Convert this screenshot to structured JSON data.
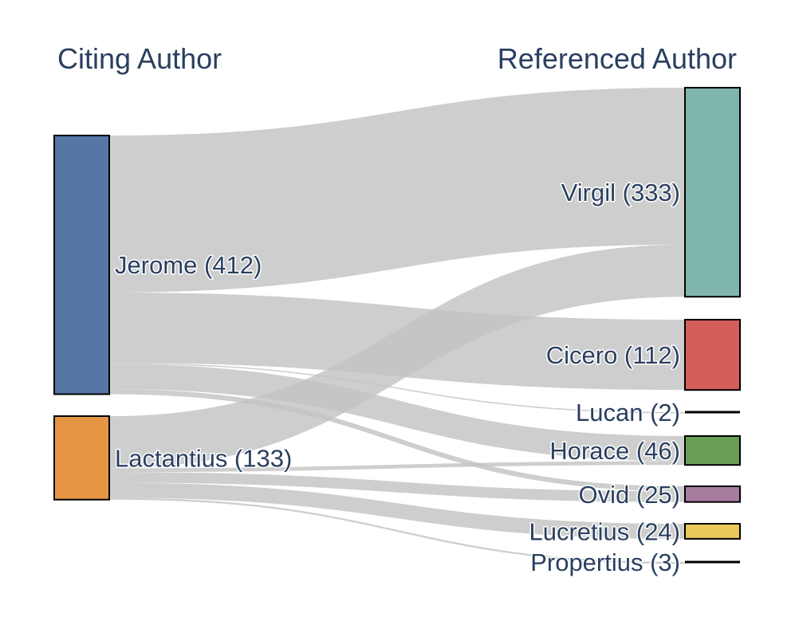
{
  "chart_data": {
    "type": "sankey",
    "headers": {
      "left": "Citing Author",
      "right": "Referenced Author"
    },
    "sources": [
      {
        "id": "jerome",
        "name": "Jerome",
        "total": 412,
        "label": "Jerome (412)",
        "color": "#5676a6"
      },
      {
        "id": "lactantius",
        "name": "Lactantius",
        "total": 133,
        "label": "Lactantius (133)",
        "color": "#e69545"
      }
    ],
    "targets": [
      {
        "id": "virgil",
        "name": "Virgil",
        "total": 333,
        "label": "Virgil (333)",
        "color": "#80b5ae"
      },
      {
        "id": "cicero",
        "name": "Cicero",
        "total": 112,
        "label": "Cicero (112)",
        "color": "#d45f5a"
      },
      {
        "id": "lucan",
        "name": "Lucan",
        "total": 2,
        "label": "Lucan (2)",
        "color": "#000000"
      },
      {
        "id": "horace",
        "name": "Horace",
        "total": 46,
        "label": "Horace (46)",
        "color": "#6a9e56"
      },
      {
        "id": "ovid",
        "name": "Ovid",
        "total": 25,
        "label": "Ovid (25)",
        "color": "#a77c9e"
      },
      {
        "id": "lucretius",
        "name": "Lucretius",
        "total": 24,
        "label": "Lucretius (24)",
        "color": "#e8c95a"
      },
      {
        "id": "propertius",
        "name": "Propertius",
        "total": 3,
        "label": "Propertius (3)",
        "color": "#000000"
      }
    ],
    "links": [
      {
        "source": "jerome",
        "target": "virgil",
        "value": 250
      },
      {
        "source": "jerome",
        "target": "cicero",
        "value": 112
      },
      {
        "source": "jerome",
        "target": "lucan",
        "value": 2
      },
      {
        "source": "jerome",
        "target": "horace",
        "value": 40
      },
      {
        "source": "jerome",
        "target": "ovid",
        "value": 8
      },
      {
        "source": "lactantius",
        "target": "virgil",
        "value": 83
      },
      {
        "source": "lactantius",
        "target": "horace",
        "value": 6
      },
      {
        "source": "lactantius",
        "target": "ovid",
        "value": 17
      },
      {
        "source": "lactantius",
        "target": "lucretius",
        "value": 24
      },
      {
        "source": "lactantius",
        "target": "propertius",
        "value": 3
      }
    ]
  }
}
